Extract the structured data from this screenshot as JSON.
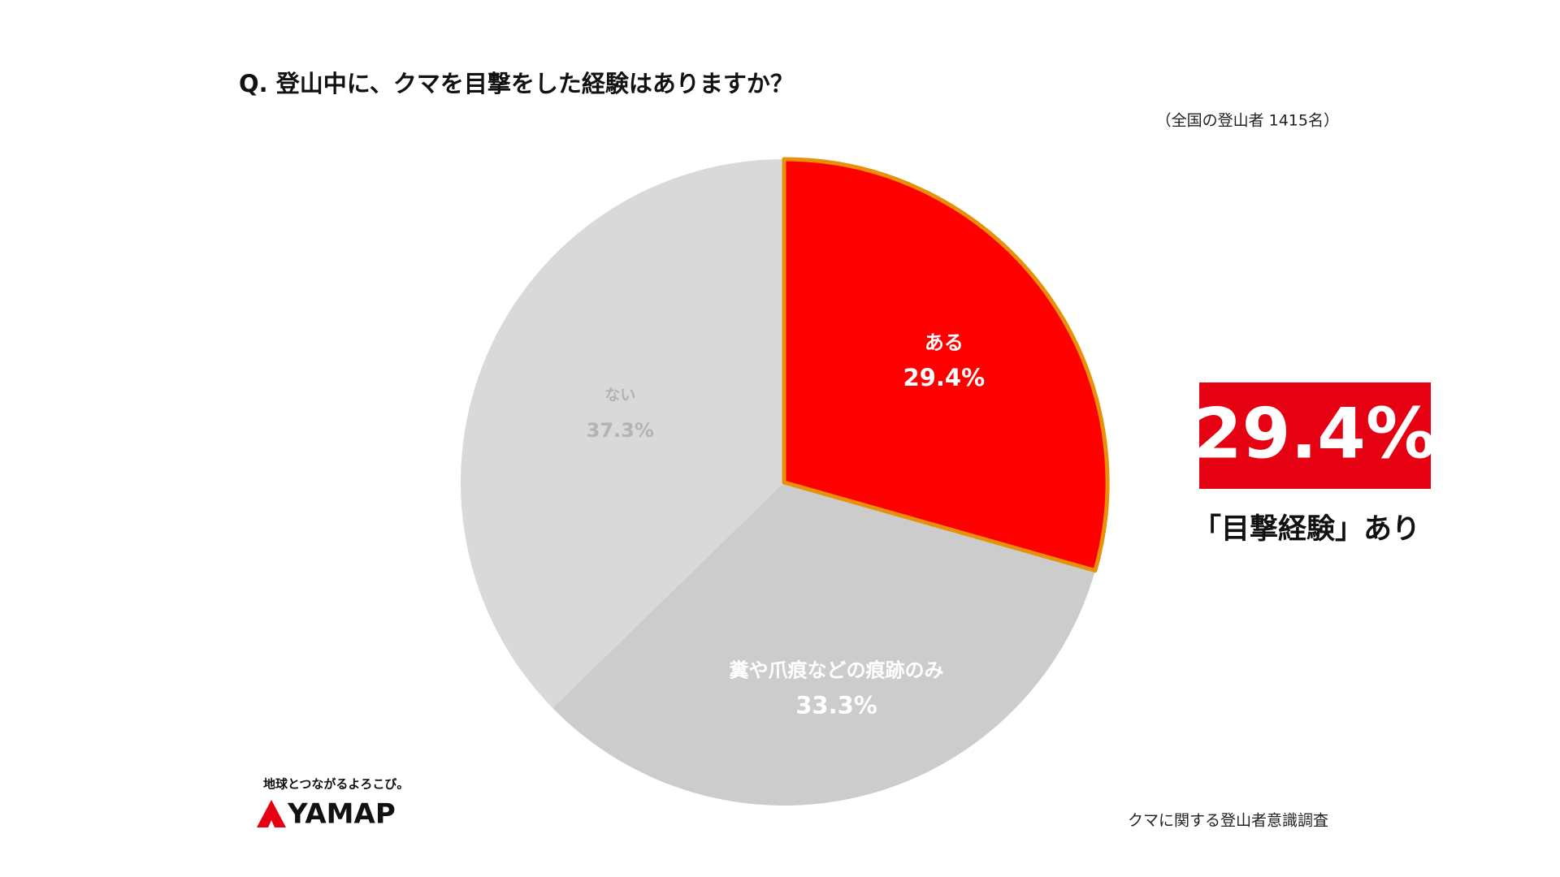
{
  "chart_data": {
    "type": "pie",
    "title": "Q. 登山中に、クマを目撃をした経験はありますか？",
    "subtitle": "（全国の登山者 1415名）",
    "categories": [
      "ある",
      "糞や爪痕などの痕跡のみ",
      "ない"
    ],
    "values": [
      29.4,
      33.3,
      37.3
    ],
    "value_labels": [
      "29.4%",
      "33.3%",
      "37.3%"
    ],
    "colors": [
      "#ff0000",
      "#cccccc",
      "#d9d9d9"
    ],
    "label_colors": [
      "#ffffff",
      "#ffffff",
      "#b3b3b3"
    ],
    "highlight_stroke": "#e8900a",
    "callout": {
      "text": "29.4%",
      "caption": "「目撃経験」あり"
    },
    "brand": {
      "tagline": "地球とつながるよろこび。",
      "name": "YAMAP"
    },
    "source": "クマに関する登山者意識調査"
  }
}
